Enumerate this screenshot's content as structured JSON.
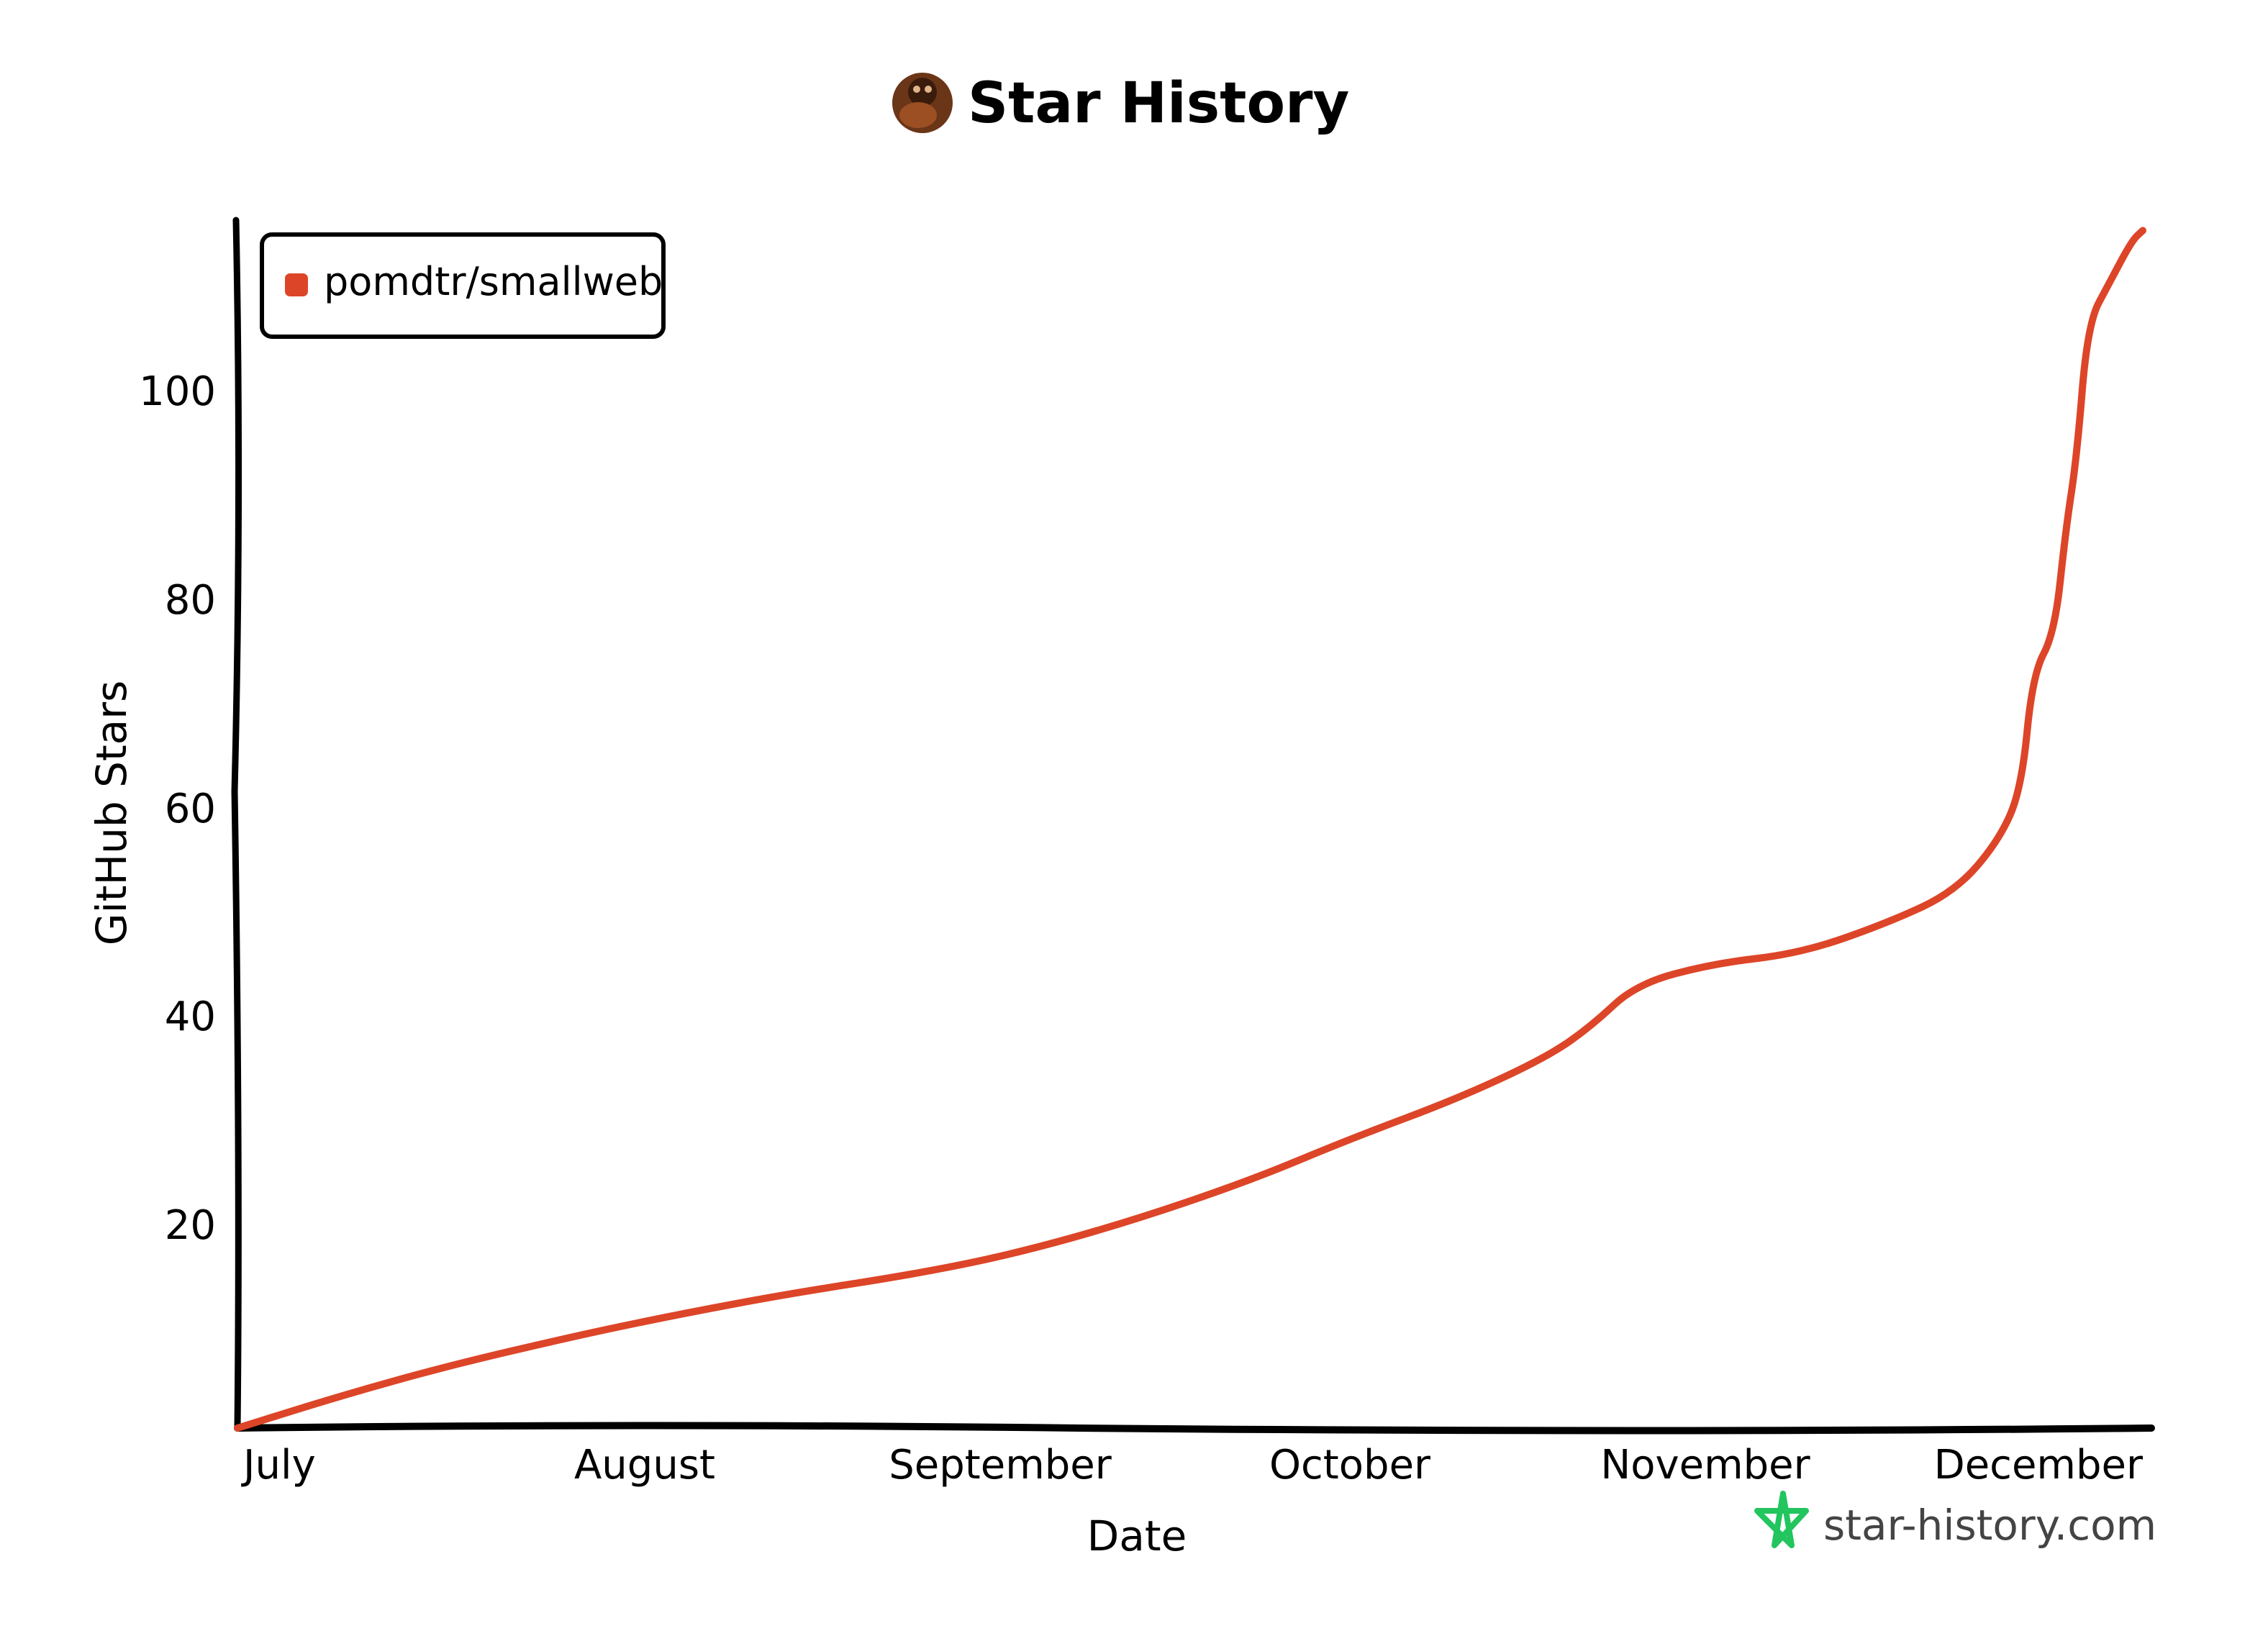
{
  "header": {
    "title": "Star History",
    "avatar_icon": "orangutan-avatar-icon"
  },
  "brand": {
    "text": "star-history.com",
    "icon": "star-icon",
    "icon_color": "#22c55e"
  },
  "colors": {
    "series": "#dd4528",
    "axis": "#000000",
    "background": "#ffffff"
  },
  "chart_data": {
    "type": "line",
    "xlabel": "Date",
    "ylabel": "GitHub Stars",
    "x_tick_labels": [
      "July",
      "August",
      "September",
      "October",
      "November",
      "December"
    ],
    "y_ticks": [
      20,
      40,
      60,
      80,
      100
    ],
    "ylim": [
      0,
      117
    ],
    "legend": {
      "placement": "top-left"
    },
    "grid": false,
    "series": [
      {
        "name": "pomdtr/smallweb",
        "color": "#dd4528",
        "points": [
          [
            "2024-07-01",
            0
          ],
          [
            "2024-07-10",
            3
          ],
          [
            "2024-07-20",
            6
          ],
          [
            "2024-08-01",
            9
          ],
          [
            "2024-08-10",
            11
          ],
          [
            "2024-08-20",
            13
          ],
          [
            "2024-09-01",
            15
          ],
          [
            "2024-09-10",
            17
          ],
          [
            "2024-09-20",
            20
          ],
          [
            "2024-10-01",
            24
          ],
          [
            "2024-10-10",
            28
          ],
          [
            "2024-10-20",
            32
          ],
          [
            "2024-10-28",
            36
          ],
          [
            "2024-11-01",
            39
          ],
          [
            "2024-11-05",
            43
          ],
          [
            "2024-11-12",
            45
          ],
          [
            "2024-11-20",
            46
          ],
          [
            "2024-11-28",
            49
          ],
          [
            "2024-12-04",
            52
          ],
          [
            "2024-12-08",
            57
          ],
          [
            "2024-12-10",
            62
          ],
          [
            "2024-12-11",
            73
          ],
          [
            "2024-12-13",
            77
          ],
          [
            "2024-12-14",
            87
          ],
          [
            "2024-12-15",
            94
          ],
          [
            "2024-12-16",
            107
          ],
          [
            "2024-12-18",
            111
          ],
          [
            "2024-12-20",
            115
          ],
          [
            "2024-12-21",
            116
          ]
        ]
      }
    ]
  }
}
